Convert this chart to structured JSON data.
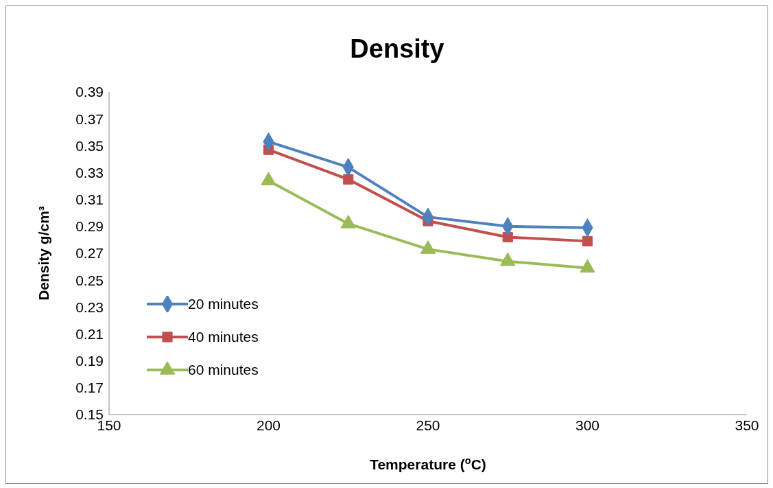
{
  "chart_data": {
    "type": "line",
    "title": "Density",
    "xlabel": "Temperature ($^{o}$C)",
    "ylabel": "Density g/cm³",
    "x": [
      200,
      225,
      250,
      275,
      300
    ],
    "series": [
      {
        "name": "20 minutes",
        "color": "#4f81bd",
        "marker": "diamond",
        "values": [
          0.353,
          0.334,
          0.297,
          0.29,
          0.289
        ]
      },
      {
        "name": "40 minutes",
        "color": "#c0504d",
        "marker": "square",
        "values": [
          0.347,
          0.325,
          0.294,
          0.282,
          0.279
        ]
      },
      {
        "name": "60 minutes",
        "color": "#9bbb59",
        "marker": "triangle",
        "values": [
          0.324,
          0.292,
          0.273,
          0.264,
          0.259
        ]
      }
    ],
    "xlim": [
      150,
      350
    ],
    "xticks": [
      150,
      200,
      250,
      300,
      350
    ],
    "ylim": [
      0.15,
      0.39
    ],
    "yticks": [
      0.15,
      0.17,
      0.19,
      0.21,
      0.23,
      0.25,
      0.27,
      0.29,
      0.31,
      0.33,
      0.35,
      0.37,
      0.39
    ],
    "grid": false,
    "legend": "bottom left",
    "line_style": "solid"
  }
}
